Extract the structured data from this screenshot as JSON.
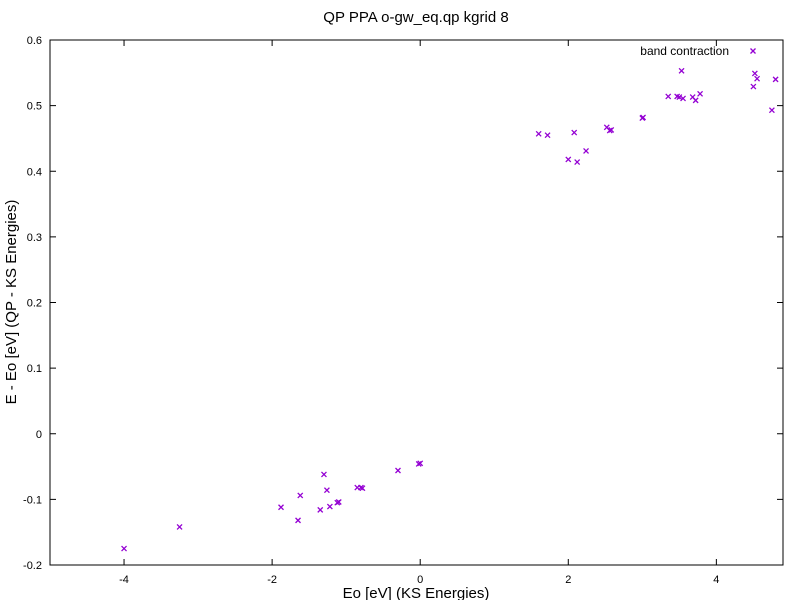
{
  "chart_data": {
    "type": "scatter",
    "title": "QP PPA o-gw_eq.qp kgrid 8",
    "xlabel": "Eo [eV] (KS Energies)",
    "ylabel": "E - Eo [eV] (QP - KS Energies)",
    "xlim": [
      -5,
      4.9
    ],
    "ylim": [
      -0.2,
      0.6
    ],
    "xticks": [
      -4,
      -2,
      0,
      2,
      4
    ],
    "yticks": [
      -0.2,
      -0.1,
      0,
      0.1,
      0.2,
      0.3,
      0.4,
      0.5,
      0.6
    ],
    "xtick_labels": [
      "-4",
      "-2",
      "0",
      "2",
      "4"
    ],
    "ytick_labels": [
      "-0.2",
      "-0.1",
      "0",
      "0.1",
      "0.2",
      "0.3",
      "0.4",
      "0.5",
      "0.6"
    ],
    "grid": false,
    "legend_position": "top-right",
    "series": [
      {
        "name": "band contraction",
        "color": "#9400d3",
        "marker": "x",
        "points": [
          [
            -4.0,
            -0.175
          ],
          [
            -3.25,
            -0.142
          ],
          [
            -1.88,
            -0.112
          ],
          [
            -1.65,
            -0.132
          ],
          [
            -1.62,
            -0.094
          ],
          [
            -1.35,
            -0.116
          ],
          [
            -1.3,
            -0.062
          ],
          [
            -1.26,
            -0.086
          ],
          [
            -1.22,
            -0.111
          ],
          [
            -1.12,
            -0.105
          ],
          [
            -1.1,
            -0.104
          ],
          [
            -0.85,
            -0.082
          ],
          [
            -0.8,
            -0.082
          ],
          [
            -0.78,
            -0.083
          ],
          [
            -0.3,
            -0.056
          ],
          [
            -0.02,
            -0.046
          ],
          [
            0.0,
            -0.045
          ],
          [
            1.6,
            0.457
          ],
          [
            1.72,
            0.455
          ],
          [
            2.0,
            0.418
          ],
          [
            2.08,
            0.459
          ],
          [
            2.12,
            0.414
          ],
          [
            2.24,
            0.431
          ],
          [
            2.52,
            0.467
          ],
          [
            2.56,
            0.462
          ],
          [
            2.58,
            0.463
          ],
          [
            3.0,
            0.481
          ],
          [
            3.01,
            0.482
          ],
          [
            3.35,
            0.514
          ],
          [
            3.47,
            0.514
          ],
          [
            3.5,
            0.513
          ],
          [
            3.53,
            0.553
          ],
          [
            3.55,
            0.511
          ],
          [
            3.68,
            0.513
          ],
          [
            3.72,
            0.508
          ],
          [
            3.78,
            0.518
          ],
          [
            4.5,
            0.529
          ],
          [
            4.52,
            0.549
          ],
          [
            4.55,
            0.541
          ],
          [
            4.75,
            0.493
          ],
          [
            4.8,
            0.54
          ]
        ]
      }
    ]
  }
}
